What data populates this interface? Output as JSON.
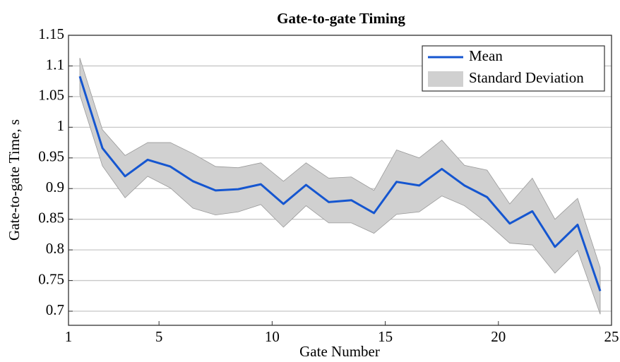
{
  "chart_data": {
    "type": "line",
    "title": "Gate-to-gate Timing",
    "x_label": "Gate Number",
    "y_label": "Gate-to-gate Time, s",
    "x": [
      1.5,
      2.5,
      3.5,
      4.5,
      5.5,
      6.5,
      7.5,
      8.5,
      9.5,
      10.5,
      11.5,
      12.5,
      13.5,
      14.5,
      15.5,
      16.5,
      17.5,
      18.5,
      19.5,
      20.5,
      21.5,
      22.5,
      23.5,
      24.5
    ],
    "series": [
      {
        "name": "Mean",
        "color": "#1556d0",
        "values": [
          1.083,
          0.966,
          0.92,
          0.947,
          0.936,
          0.912,
          0.897,
          0.899,
          0.907,
          0.875,
          0.906,
          0.878,
          0.881,
          0.86,
          0.911,
          0.905,
          0.932,
          0.905,
          0.886,
          0.843,
          0.863,
          0.805,
          0.841,
          0.733
        ]
      },
      {
        "name": "Standard Deviation",
        "color": "#d0d0d0",
        "upper": [
          1.113,
          0.996,
          0.954,
          0.975,
          0.975,
          0.957,
          0.936,
          0.934,
          0.942,
          0.912,
          0.942,
          0.917,
          0.919,
          0.897,
          0.963,
          0.95,
          0.979,
          0.938,
          0.93,
          0.875,
          0.917,
          0.85,
          0.884,
          0.771
        ],
        "lower": [
          1.053,
          0.937,
          0.885,
          0.92,
          0.901,
          0.868,
          0.857,
          0.862,
          0.874,
          0.837,
          0.872,
          0.844,
          0.844,
          0.827,
          0.858,
          0.862,
          0.888,
          0.872,
          0.844,
          0.811,
          0.808,
          0.762,
          0.799,
          0.695
        ]
      }
    ],
    "xlim": [
      1,
      25
    ],
    "xticks": [
      1,
      5,
      10,
      15,
      20,
      25
    ],
    "ylim": [
      0.677,
      1.15
    ],
    "yticks": [
      0.7,
      0.75,
      0.8,
      0.85,
      0.9,
      0.95,
      1,
      1.05,
      1.1,
      1.15
    ],
    "grid": true,
    "legend": "upper right"
  }
}
